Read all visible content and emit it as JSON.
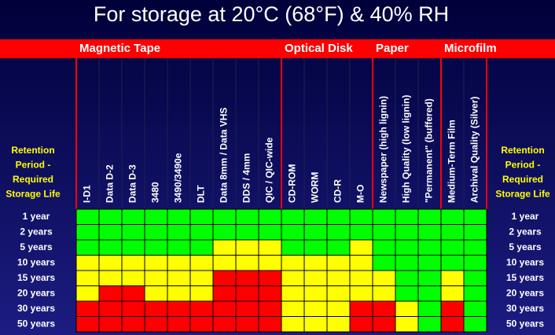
{
  "title": "For storage at 20°C (68°F) & 40% RH",
  "side_label": [
    "Retention",
    "Period -",
    "Required",
    "Storage Life"
  ],
  "groups": [
    {
      "label": "Magnetic Tape",
      "columns": [
        "I-D1",
        "Data D-2",
        "Data D-3",
        "3480",
        "3490/3490e",
        "DLT",
        "Data 8mm / Data VHS",
        "DDS / 4mm",
        "QIC / QIC-wide"
      ]
    },
    {
      "label": "Optical Disk",
      "columns": [
        "CD-ROM",
        "WORM",
        "CD-R",
        "M-O"
      ]
    },
    {
      "label": "Paper",
      "columns": [
        "Newspaper (high lignin)",
        "High Quality (low lignin)",
        "\"Permanent\" (buffered)"
      ]
    },
    {
      "label": "Microfilm",
      "columns": [
        "Medium-Term Film",
        "Archival Quality (Silver)"
      ]
    }
  ],
  "rows": [
    {
      "label": "1 year",
      "cells": [
        "#00ff00",
        "#00ff00",
        "#00ff00",
        "#00ff00",
        "#00ff00",
        "#00ff00",
        "#00ff00",
        "#00ff00",
        "#00ff00",
        "#00ff00",
        "#00ff00",
        "#00ff00",
        "#00ff00",
        "#00ff00",
        "#00ff00",
        "#00ff00",
        "#00ff00",
        "#00ff00"
      ]
    },
    {
      "label": "2 years",
      "cells": [
        "#00ff00",
        "#00ff00",
        "#00ff00",
        "#00ff00",
        "#00ff00",
        "#00ff00",
        "#00ff00",
        "#00ff00",
        "#00ff00",
        "#00ff00",
        "#00ff00",
        "#00ff00",
        "#00ff00",
        "#00ff00",
        "#00ff00",
        "#00ff00",
        "#00ff00",
        "#00ff00"
      ]
    },
    {
      "label": "5 years",
      "cells": [
        "#00ff00",
        "#00ff00",
        "#00ff00",
        "#00ff00",
        "#00ff00",
        "#00ff00",
        "#ffff00",
        "#ffff00",
        "#ffff00",
        "#00ff00",
        "#00ff00",
        "#00ff00",
        "#ffff00",
        "#00ff00",
        "#00ff00",
        "#00ff00",
        "#00ff00",
        "#00ff00"
      ]
    },
    {
      "label": "10 years",
      "cells": [
        "#ffff00",
        "#ffff00",
        "#ffff00",
        "#ffff00",
        "#ffff00",
        "#ffff00",
        "#ffff00",
        "#ffff00",
        "#ffff00",
        "#ffff00",
        "#ffff00",
        "#ffff00",
        "#ffff00",
        "#00ff00",
        "#00ff00",
        "#00ff00",
        "#00ff00",
        "#00ff00"
      ]
    },
    {
      "label": "15 years",
      "cells": [
        "#ffff00",
        "#ffff00",
        "#ffff00",
        "#ffff00",
        "#ffff00",
        "#ffff00",
        "#ff0000",
        "#ff0000",
        "#ff0000",
        "#ffff00",
        "#ffff00",
        "#ffff00",
        "#ffff00",
        "#ffff00",
        "#00ff00",
        "#00ff00",
        "#ffff00",
        "#00ff00"
      ]
    },
    {
      "label": "20 years",
      "cells": [
        "#ffff00",
        "#ff0000",
        "#ff0000",
        "#ffff00",
        "#ffff00",
        "#ffff00",
        "#ff0000",
        "#ff0000",
        "#ff0000",
        "#ffff00",
        "#ffff00",
        "#ffff00",
        "#ffff00",
        "#ffff00",
        "#00ff00",
        "#00ff00",
        "#ffff00",
        "#00ff00"
      ]
    },
    {
      "label": "30 years",
      "cells": [
        "#ff0000",
        "#ff0000",
        "#ff0000",
        "#ff0000",
        "#ff0000",
        "#ff0000",
        "#ff0000",
        "#ff0000",
        "#ff0000",
        "#ffff00",
        "#ffff00",
        "#ffff00",
        "#ff0000",
        "#ff0000",
        "#ffff00",
        "#00ff00",
        "#ff0000",
        "#00ff00"
      ]
    },
    {
      "label": "50 years",
      "cells": [
        "#ff0000",
        "#ff0000",
        "#ff0000",
        "#ff0000",
        "#ff0000",
        "#ff0000",
        "#ff0000",
        "#ff0000",
        "#ff0000",
        "#ffff00",
        "#ffff00",
        "#ffff00",
        "#ff0000",
        "#ff0000",
        "#ffff00",
        "#00ff00",
        "#ff0000",
        "#00ff00"
      ]
    }
  ]
}
